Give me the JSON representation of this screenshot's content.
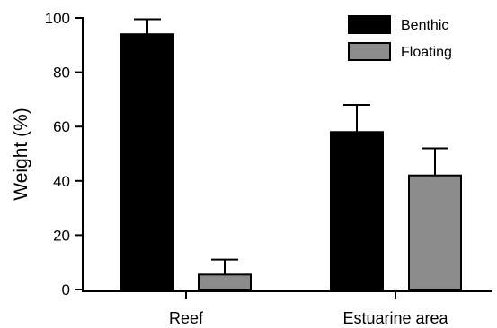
{
  "chart_data": {
    "type": "bar",
    "ylabel": "Weight (%)",
    "xlabel": "",
    "ylim": [
      0,
      100
    ],
    "yticks": [
      0,
      20,
      40,
      60,
      80,
      100
    ],
    "grid": false,
    "legend_position": "top-right",
    "categories": [
      "Reef",
      "Estuarine area"
    ],
    "series": [
      {
        "name": "Benthic",
        "color": "#000000",
        "values": [
          94,
          58
        ],
        "errors": [
          5.5,
          10
        ]
      },
      {
        "name": "Floating",
        "color": "#8c8c8c",
        "values": [
          5.5,
          42
        ],
        "errors": [
          5.5,
          10
        ]
      }
    ]
  }
}
